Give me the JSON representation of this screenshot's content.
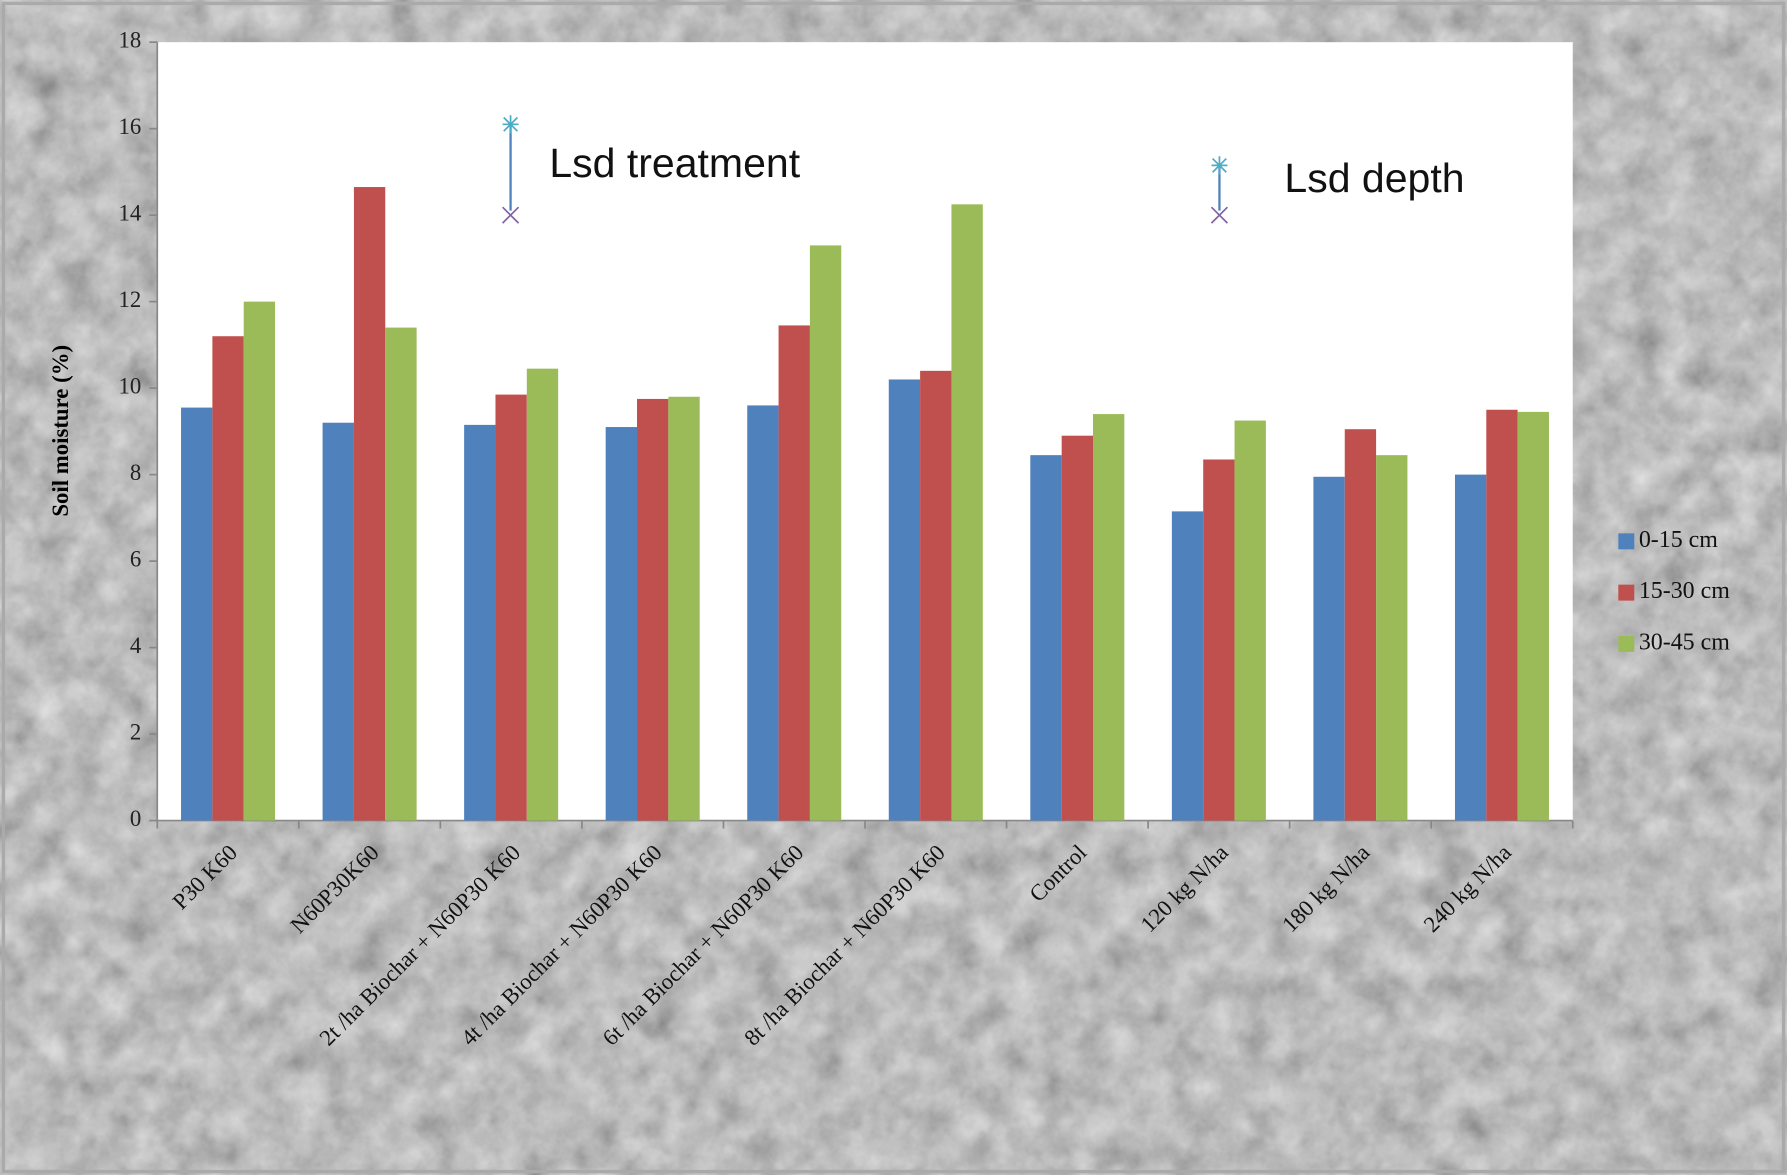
{
  "chart_data": {
    "type": "bar",
    "y_label": "Soil moisture (%)",
    "categories": [
      "P30 K60",
      "N60P30K60",
      "2t /ha Biochar + N60P30 K60",
      "4t /ha Biochar + N60P30 K60",
      "6t /ha Biochar + N60P30 K60",
      "8t /ha Biochar + N60P30 K60",
      "Control",
      "120 kg N/ha",
      "180 kg N/ha",
      "240 kg N/ha"
    ],
    "series": [
      {
        "name": "0-15 cm",
        "color": "#4f81bd",
        "values": [
          9.55,
          9.2,
          9.15,
          9.1,
          9.6,
          10.2,
          8.45,
          7.15,
          7.95,
          8.0
        ]
      },
      {
        "name": "15-30 cm",
        "color": "#c0504d",
        "values": [
          11.2,
          14.65,
          9.85,
          9.75,
          11.45,
          10.4,
          8.9,
          8.35,
          9.05,
          9.5
        ]
      },
      {
        "name": "30-45 cm",
        "color": "#9bbb59",
        "values": [
          12.0,
          11.4,
          10.45,
          9.8,
          13.3,
          14.25,
          9.4,
          9.25,
          8.45,
          9.45
        ]
      }
    ],
    "ylim": [
      0,
      18
    ],
    "yticks": [
      0,
      2,
      4,
      6,
      8,
      10,
      12,
      14,
      16,
      18
    ],
    "legend": "right",
    "lsd_markers": [
      {
        "label": "Lsd treatment",
        "high": 16.1,
        "low": 14.0
      },
      {
        "label": "Lsd depth",
        "high": 15.15,
        "low": 14.0
      }
    ]
  }
}
